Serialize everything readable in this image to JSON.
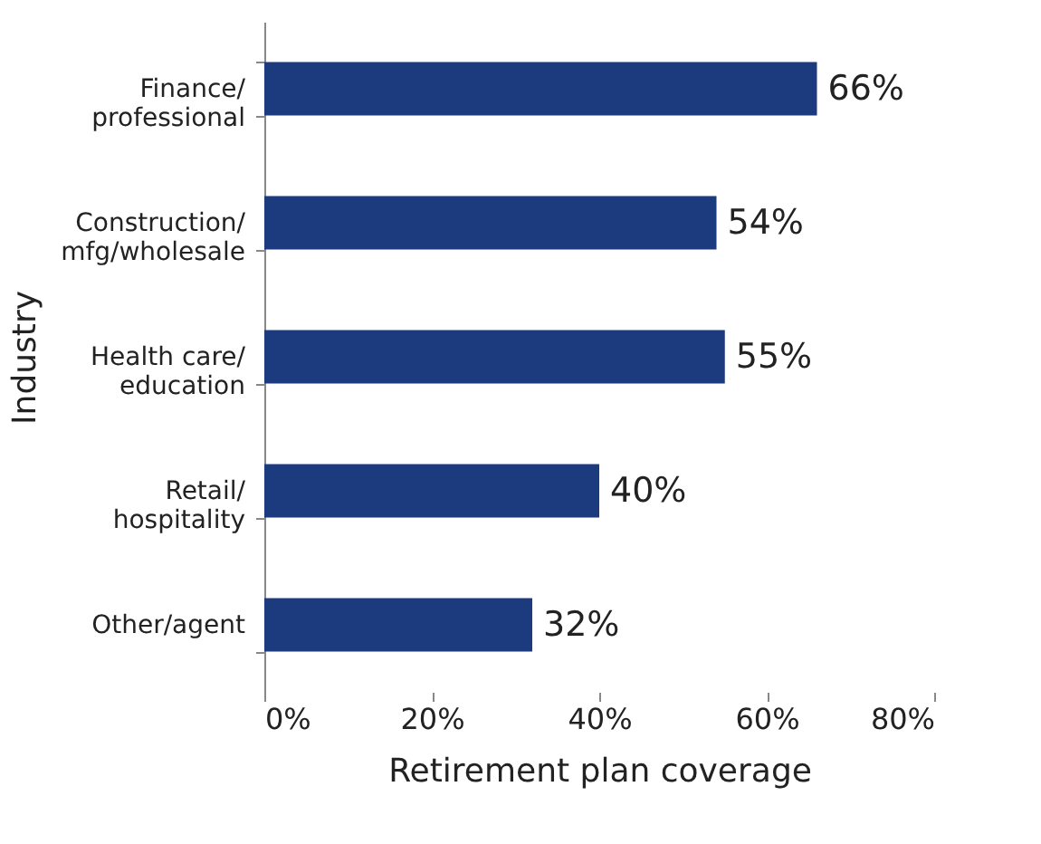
{
  "chart_data": {
    "type": "bar",
    "orientation": "horizontal",
    "xlabel": "Retirement plan coverage",
    "ylabel": "Industry",
    "categories": [
      "Finance/\nprofessional",
      "Construction/\nmfg/wholesale",
      "Health care/\neducation",
      "Retail/\nhospitality",
      "Other/agent"
    ],
    "values": [
      66,
      54,
      55,
      40,
      32
    ],
    "color": "#1c3a7e",
    "value_labels": [
      "66%",
      "54%",
      "55%",
      "40%",
      "32%"
    ],
    "xlim": [
      0,
      80
    ],
    "xticks": [
      {
        "value": 0,
        "label": "0%"
      },
      {
        "value": 20,
        "label": "20%"
      },
      {
        "value": 40,
        "label": "40%"
      },
      {
        "value": 60,
        "label": "60%"
      },
      {
        "value": 80,
        "label": "80%"
      }
    ],
    "grid": false
  }
}
